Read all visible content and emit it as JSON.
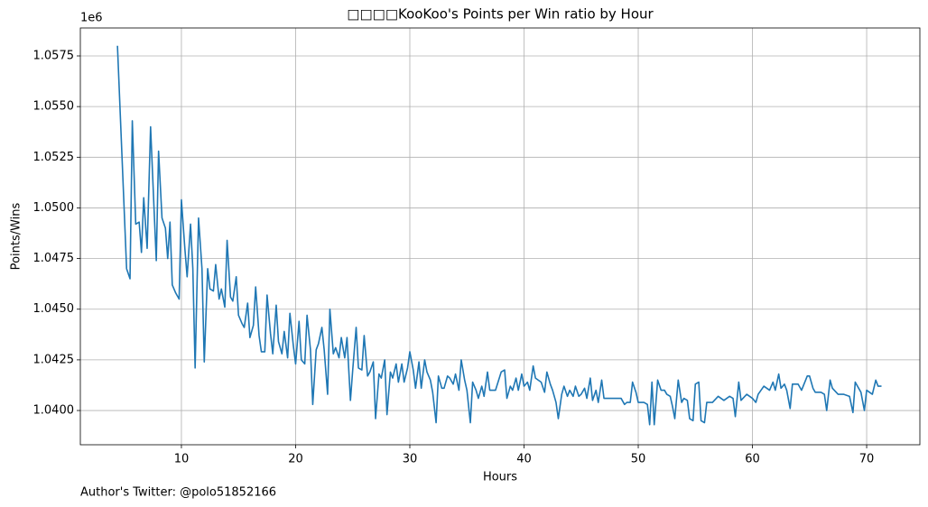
{
  "chart_data": {
    "type": "line",
    "title": "□□□□KooKoo's Points per Win ratio by Hour",
    "x_label": "Hours",
    "y_label": "Points/Wins",
    "y_offset_label": "1e6",
    "annotation": "Author's Twitter: @polo51852166",
    "grid": true,
    "xlim": [
      1.15,
      74.66
    ],
    "ylim": [
      1038310,
      1058880
    ],
    "xticks": [
      10,
      20,
      30,
      40,
      50,
      60,
      70
    ],
    "yticks": [
      {
        "value": 1040000,
        "label": "1.0400"
      },
      {
        "value": 1042500,
        "label": "1.0425"
      },
      {
        "value": 1045000,
        "label": "1.0450"
      },
      {
        "value": 1047500,
        "label": "1.0475"
      },
      {
        "value": 1050000,
        "label": "1.0500"
      },
      {
        "value": 1052500,
        "label": "1.0525"
      },
      {
        "value": 1055000,
        "label": "1.0550"
      },
      {
        "value": 1057500,
        "label": "1.0575"
      }
    ],
    "x": [
      4.4,
      4.8,
      5.2,
      5.5,
      5.7,
      6.0,
      6.3,
      6.5,
      6.7,
      7.0,
      7.3,
      7.6,
      7.8,
      8.0,
      8.3,
      8.6,
      8.8,
      9.0,
      9.2,
      9.5,
      9.8,
      10.0,
      10.3,
      10.5,
      10.8,
      11.0,
      11.2,
      11.5,
      11.8,
      12.0,
      12.3,
      12.5,
      12.8,
      13.0,
      13.3,
      13.5,
      13.8,
      14.0,
      14.3,
      14.5,
      14.8,
      15.0,
      15.3,
      15.5,
      15.8,
      16.0,
      16.3,
      16.5,
      16.8,
      17.0,
      17.3,
      17.5,
      17.8,
      18.0,
      18.3,
      18.5,
      18.8,
      19.0,
      19.3,
      19.5,
      19.8,
      20.0,
      20.3,
      20.5,
      20.8,
      21.0,
      21.3,
      21.5,
      21.8,
      22.0,
      22.3,
      22.5,
      22.8,
      23.0,
      23.3,
      23.5,
      23.8,
      24.0,
      24.3,
      24.5,
      24.8,
      25.0,
      25.3,
      25.5,
      25.8,
      26.0,
      26.3,
      26.5,
      26.8,
      27.0,
      27.3,
      27.5,
      27.8,
      28.0,
      28.3,
      28.5,
      28.8,
      29.0,
      29.3,
      29.5,
      29.8,
      30.0,
      30.3,
      30.5,
      30.8,
      31.0,
      31.3,
      31.5,
      31.8,
      32.0,
      32.3,
      32.5,
      32.8,
      33.0,
      33.3,
      33.5,
      33.8,
      34.0,
      34.3,
      34.5,
      34.8,
      35.0,
      35.3,
      35.5,
      35.8,
      36.0,
      36.3,
      36.5,
      36.8,
      37.0,
      37.5,
      38.0,
      38.3,
      38.5,
      38.8,
      39.0,
      39.3,
      39.5,
      39.8,
      40.0,
      40.3,
      40.5,
      40.8,
      41.0,
      41.5,
      41.8,
      42.0,
      42.3,
      42.5,
      42.8,
      43.0,
      43.3,
      43.5,
      43.8,
      44.0,
      44.3,
      44.5,
      44.8,
      45.0,
      45.3,
      45.5,
      45.8,
      46.0,
      46.3,
      46.5,
      46.8,
      47.0,
      47.5,
      48.0,
      48.5,
      48.8,
      49.0,
      49.3,
      49.5,
      49.8,
      50.0,
      50.5,
      50.8,
      51.0,
      51.2,
      51.4,
      51.7,
      52.0,
      52.3,
      52.5,
      52.8,
      53.0,
      53.2,
      53.5,
      53.8,
      54.0,
      54.3,
      54.5,
      54.8,
      55.0,
      55.3,
      55.5,
      55.8,
      56.0,
      56.5,
      57.0,
      57.5,
      58.0,
      58.3,
      58.5,
      58.8,
      59.0,
      59.5,
      60.0,
      60.3,
      60.5,
      61.0,
      61.5,
      61.8,
      62.0,
      62.3,
      62.5,
      62.8,
      63.0,
      63.3,
      63.5,
      64.0,
      64.3,
      64.8,
      65.0,
      65.3,
      65.5,
      66.0,
      66.3,
      66.5,
      66.8,
      67.0,
      67.5,
      68.0,
      68.5,
      68.8,
      69.0,
      69.5,
      69.8,
      70.0,
      70.5,
      70.8,
      71.0,
      71.3
    ],
    "series": [
      {
        "color": "#1f77b4",
        "values": [
          1058000,
          1052500,
          1047000,
          1046500,
          1054300,
          1049200,
          1049300,
          1047800,
          1050500,
          1048000,
          1054000,
          1050000,
          1047400,
          1052800,
          1049500,
          1049000,
          1047500,
          1049300,
          1046200,
          1045800,
          1045500,
          1050400,
          1048000,
          1046600,
          1049200,
          1047000,
          1042100,
          1049500,
          1047000,
          1042400,
          1047000,
          1046000,
          1045900,
          1047200,
          1045500,
          1046000,
          1045100,
          1048400,
          1045600,
          1045400,
          1046600,
          1044700,
          1044300,
          1044100,
          1045300,
          1043600,
          1044200,
          1046100,
          1043700,
          1042900,
          1042900,
          1045700,
          1043800,
          1042800,
          1045200,
          1043400,
          1042800,
          1043900,
          1042600,
          1044800,
          1043200,
          1042300,
          1044400,
          1042500,
          1042300,
          1044700,
          1043000,
          1040300,
          1043000,
          1043300,
          1044100,
          1043000,
          1040800,
          1045000,
          1042800,
          1043100,
          1042600,
          1043600,
          1042600,
          1043600,
          1040500,
          1042000,
          1044100,
          1042100,
          1042000,
          1043700,
          1041700,
          1041900,
          1042400,
          1039600,
          1041800,
          1041600,
          1042500,
          1039800,
          1041900,
          1041600,
          1042300,
          1041400,
          1042300,
          1041400,
          1042100,
          1042900,
          1042000,
          1041100,
          1042400,
          1041100,
          1042500,
          1041900,
          1041500,
          1040900,
          1039400,
          1041700,
          1041100,
          1041100,
          1041700,
          1041600,
          1041300,
          1041800,
          1041000,
          1042500,
          1041500,
          1041000,
          1039400,
          1041400,
          1041000,
          1040600,
          1041200,
          1040700,
          1041900,
          1041000,
          1041000,
          1041900,
          1042000,
          1040600,
          1041200,
          1041000,
          1041600,
          1041000,
          1041800,
          1041200,
          1041400,
          1041000,
          1042200,
          1041600,
          1041400,
          1040900,
          1041900,
          1041300,
          1041000,
          1040400,
          1039600,
          1040800,
          1041200,
          1040700,
          1041000,
          1040700,
          1041200,
          1040700,
          1040800,
          1041100,
          1040600,
          1041600,
          1040500,
          1041000,
          1040400,
          1041500,
          1040600,
          1040600,
          1040600,
          1040600,
          1040300,
          1040400,
          1040400,
          1041400,
          1040900,
          1040400,
          1040400,
          1040300,
          1039300,
          1041400,
          1039300,
          1041500,
          1041000,
          1041000,
          1040800,
          1040700,
          1040200,
          1039600,
          1041500,
          1040400,
          1040600,
          1040500,
          1039600,
          1039500,
          1041300,
          1041400,
          1039500,
          1039400,
          1040400,
          1040400,
          1040700,
          1040500,
          1040700,
          1040600,
          1039700,
          1041400,
          1040500,
          1040800,
          1040600,
          1040400,
          1040800,
          1041200,
          1041000,
          1041400,
          1041000,
          1041800,
          1041100,
          1041300,
          1041000,
          1040100,
          1041300,
          1041300,
          1041000,
          1041700,
          1041700,
          1041100,
          1040900,
          1040900,
          1040800,
          1040000,
          1041500,
          1041100,
          1040800,
          1040800,
          1040700,
          1039900,
          1041400,
          1040900,
          1040000,
          1041000,
          1040800,
          1041500,
          1041200,
          1041200
        ]
      }
    ]
  }
}
